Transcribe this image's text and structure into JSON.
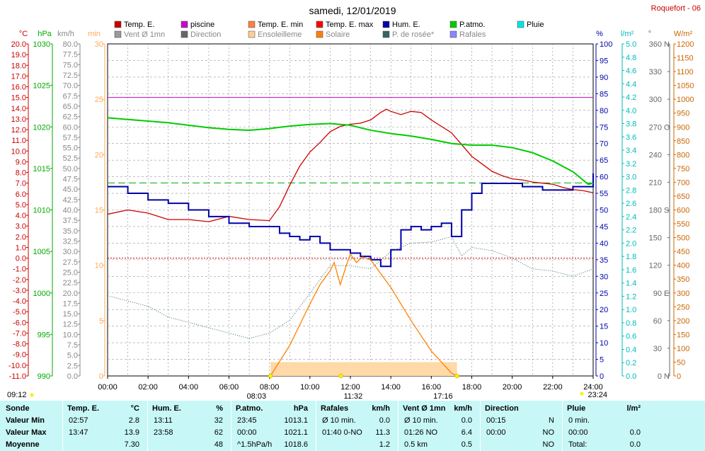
{
  "title": "samedi, 12/01/2019",
  "station": "Roquefort - 06",
  "legend": [
    {
      "label": "Temp. E.",
      "color": "#cc0000"
    },
    {
      "label": "piscine",
      "color": "#cc00cc"
    },
    {
      "label": "Temp. E. min",
      "color": "#ff8040"
    },
    {
      "label": "Temp. E. max",
      "color": "#ff0000"
    },
    {
      "label": "Hum. E.",
      "color": "#0000aa"
    },
    {
      "label": "P.atmo.",
      "color": "#00cc00"
    },
    {
      "label": "Pluie",
      "color": "#00e5e5"
    },
    {
      "label": "Vent Ø 1mn",
      "color": "#9a9a9a"
    },
    {
      "label": "Direction",
      "color": "#666666"
    },
    {
      "label": "Ensoleilleme",
      "color": "#ffcc99"
    },
    {
      "label": "Solaire",
      "color": "#ff8000"
    },
    {
      "label": "P. de rosée*",
      "color": "#336666"
    },
    {
      "label": "Rafales",
      "color": "#8888ff"
    }
  ],
  "axes": {
    "temp": {
      "unit": "°C",
      "min": -11,
      "max": 20,
      "step": 1,
      "color": "#cc0000"
    },
    "press": {
      "unit": "hPa",
      "min": 990,
      "max": 1030,
      "step": 5,
      "color": "#00aa00"
    },
    "wind": {
      "unit": "km/h",
      "min": 0,
      "max": 80,
      "step": 2.5,
      "color": "#888888"
    },
    "min": {
      "unit": "min",
      "min": 0,
      "max": 30,
      "step": 5,
      "color": "#ffaa55"
    },
    "hum": {
      "unit": "%",
      "min": 0,
      "max": 100,
      "step": 5,
      "color": "#0000aa"
    },
    "rain": {
      "unit": "l/m²",
      "min": 0,
      "max": 5.0,
      "step": 0.2,
      "color": "#00bbbb"
    },
    "dir": {
      "unit": "°",
      "min": 0,
      "max": 360,
      "step": 30,
      "color": "#666666"
    },
    "solar": {
      "unit": "W/m²",
      "min": 0,
      "max": 1200,
      "step": 50,
      "color": "#cc6600"
    }
  },
  "x_ticks": [
    "00:00",
    "02:00",
    "04:00",
    "06:00",
    "08:00",
    "10:00",
    "12:00",
    "14:00",
    "16:00",
    "18:00",
    "20:00",
    "22:00",
    "24:00"
  ],
  "sun": {
    "sunrise": "08:03",
    "noon": "11:32",
    "sunset": "17:16",
    "left": "09:12",
    "right": "23:24"
  },
  "chart_data": {
    "type": "line",
    "x_unit": "hours",
    "series": [
      {
        "name": "Temp. E.",
        "unit": "°C",
        "x": [
          0,
          1,
          2,
          3,
          4,
          5,
          6,
          7,
          8,
          8.5,
          9,
          9.5,
          10,
          10.5,
          11,
          11.5,
          12,
          12.5,
          13,
          13.5,
          13.78,
          14,
          14.5,
          15,
          15.5,
          16,
          16.5,
          17,
          17.5,
          18,
          18.5,
          19,
          19.5,
          20,
          20.5,
          21,
          21.5,
          22,
          22.5,
          23,
          23.5,
          24
        ],
        "y": [
          4.1,
          4.5,
          4.2,
          3.6,
          3.6,
          3.4,
          3.9,
          3.6,
          3.5,
          4.8,
          6.8,
          8.6,
          9.9,
          10.8,
          11.8,
          12.3,
          12.5,
          12.6,
          12.9,
          13.6,
          13.9,
          13.7,
          13.4,
          13.7,
          13.6,
          12.9,
          12.3,
          11.7,
          10.6,
          9.5,
          8.8,
          8.1,
          7.7,
          7.4,
          7.3,
          7.1,
          7.0,
          6.9,
          6.6,
          6.4,
          6.3,
          6.1
        ]
      },
      {
        "name": "Hum. E.",
        "unit": "%",
        "x": [
          0,
          1,
          2,
          3,
          4,
          5,
          6,
          7,
          8,
          8.5,
          9,
          9.5,
          10,
          10.5,
          11,
          11.5,
          12,
          12.5,
          13,
          13.5,
          14,
          14.5,
          15,
          15.5,
          16,
          16.5,
          17,
          17.5,
          18,
          18.5,
          19,
          19.5,
          20,
          20.5,
          21,
          21.5,
          22,
          22.5,
          23,
          23.5,
          24
        ],
        "y": [
          57,
          55,
          53,
          52,
          50,
          48,
          46,
          45,
          45,
          43,
          42,
          41,
          42,
          40,
          38,
          38,
          37,
          36,
          35,
          33,
          38,
          44,
          45,
          44,
          45,
          46,
          42,
          50,
          55,
          58,
          58,
          58,
          58,
          57,
          57,
          56,
          56,
          56,
          57,
          57,
          61
        ]
      },
      {
        "name": "P.atmo.",
        "unit": "hPa",
        "x": [
          0,
          1,
          2,
          3,
          4,
          5,
          6,
          7,
          8,
          9,
          10,
          11,
          12,
          13,
          14,
          15,
          16,
          17,
          18,
          19,
          20,
          21,
          22,
          23,
          23.75,
          24
        ],
        "y": [
          1021.1,
          1020.9,
          1020.7,
          1020.5,
          1020.2,
          1019.9,
          1019.7,
          1019.6,
          1019.8,
          1020.1,
          1020.3,
          1020.4,
          1020.2,
          1019.6,
          1019.2,
          1018.9,
          1018.5,
          1018.0,
          1017.8,
          1017.8,
          1017.5,
          1016.9,
          1015.9,
          1014.6,
          1013.1,
          1013.2
        ]
      },
      {
        "name": "P. de rosée*",
        "unit": "°C",
        "x": [
          0,
          1,
          2,
          3,
          4,
          5,
          6,
          7,
          8,
          9,
          10,
          11,
          12,
          13,
          14,
          15,
          16,
          17,
          17.5,
          18,
          19,
          20,
          21,
          22,
          23,
          24
        ],
        "y": [
          -3.5,
          -4.0,
          -4.5,
          -5.5,
          -6.0,
          -6.5,
          -7.0,
          -7.5,
          -7.0,
          -5.8,
          -3.3,
          -0.7,
          -0.7,
          -1.0,
          0.6,
          1.4,
          1.5,
          2.0,
          0.2,
          1.0,
          0.7,
          0.0,
          -1.0,
          -1.2,
          -1.7,
          -1.0
        ]
      },
      {
        "name": "Solaire",
        "unit": "W/m²",
        "x": [
          8.05,
          9,
          10,
          10.5,
          11,
          11.2,
          11.5,
          11.8,
          12,
          12.3,
          12.6,
          13,
          14,
          15,
          16,
          17,
          17.27
        ],
        "y": [
          0,
          110,
          260,
          330,
          380,
          410,
          330,
          400,
          440,
          410,
          430,
          420,
          320,
          200,
          90,
          10,
          0
        ]
      }
    ],
    "reference_lines": [
      {
        "name": "piscine",
        "unit": "°C",
        "y": 15.0
      },
      {
        "name": "0°C",
        "unit": "°C",
        "y": 0.0
      },
      {
        "name": "P.atmo. ref",
        "unit": "hPa",
        "y": 1013.25
      }
    ]
  },
  "table": {
    "row_labels": [
      "Sonde",
      "Valeur Min",
      "Valeur Max",
      "Moyenne"
    ],
    "groups": [
      {
        "title": "Temp. E.",
        "unit": "°C",
        "rows": [
          [
            "02:57",
            "2.8"
          ],
          [
            "13:47",
            "13.9"
          ],
          [
            "",
            "7.30"
          ]
        ]
      },
      {
        "title": "Hum. E.",
        "unit": "%",
        "rows": [
          [
            "13:11",
            "32"
          ],
          [
            "23:58",
            "62"
          ],
          [
            "",
            "48"
          ]
        ]
      },
      {
        "title": "P.atmo.",
        "unit": "hPa",
        "rows": [
          [
            "23:45",
            "1013.1"
          ],
          [
            "00:00",
            "1021.1"
          ],
          [
            "^1.5hPa/h",
            "1018.6"
          ]
        ]
      },
      {
        "title": "Rafales",
        "unit": "km/h",
        "rows": [
          [
            "Ø 10 min.",
            "0.0"
          ],
          [
            "01:40   0-NO",
            "11.3"
          ],
          [
            "",
            "1.2"
          ]
        ]
      },
      {
        "title": "Vent Ø 1mn",
        "unit": "km/h",
        "rows": [
          [
            "Ø 10 min.",
            "0.0"
          ],
          [
            "01:26   NO",
            "6.4"
          ],
          [
            "0.5 km",
            "0.5"
          ]
        ]
      },
      {
        "title": "Direction",
        "unit": "",
        "rows": [
          [
            "00:15",
            "N"
          ],
          [
            "00:00",
            "NO"
          ],
          [
            "",
            "NO"
          ]
        ]
      },
      {
        "title": "Pluie",
        "unit": "l/m²",
        "rows": [
          [
            "0 min.",
            ""
          ],
          [
            "00:00",
            "0.0"
          ],
          [
            "Total:",
            "0.0"
          ]
        ]
      }
    ]
  }
}
